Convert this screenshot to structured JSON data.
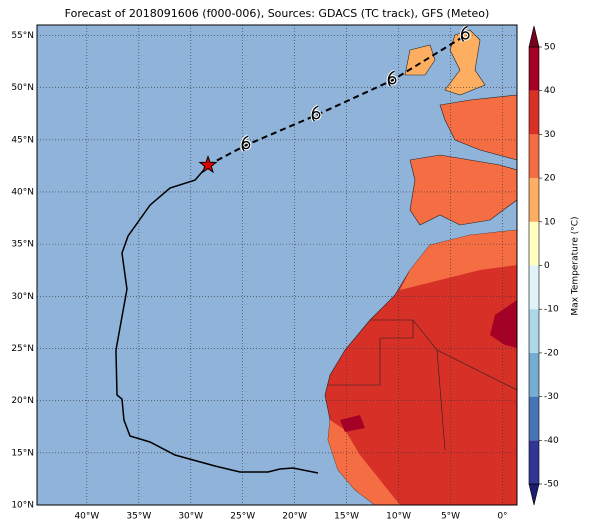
{
  "chart_data": {
    "type": "map",
    "title": "Forecast of 2018091606 (f000-006), Sources: GDACS (TC track), GFS (Meteo)",
    "xlim": [
      -44.8,
      1.4
    ],
    "ylim": [
      10,
      56
    ],
    "xticks": [
      {
        "value": -40,
        "label": "40°W"
      },
      {
        "value": -35,
        "label": "35°W"
      },
      {
        "value": -30,
        "label": "30°W"
      },
      {
        "value": -25,
        "label": "25°W"
      },
      {
        "value": -20,
        "label": "20°W"
      },
      {
        "value": -15,
        "label": "15°W"
      },
      {
        "value": -10,
        "label": "10°W"
      },
      {
        "value": -5,
        "label": "5°W"
      },
      {
        "value": 0,
        "label": "0°"
      }
    ],
    "yticks": [
      {
        "value": 10,
        "label": "10°N"
      },
      {
        "value": 15,
        "label": "15°N"
      },
      {
        "value": 20,
        "label": "20°N"
      },
      {
        "value": 25,
        "label": "25°N"
      },
      {
        "value": 30,
        "label": "30°N"
      },
      {
        "value": 35,
        "label": "35°N"
      },
      {
        "value": 40,
        "label": "40°N"
      },
      {
        "value": 45,
        "label": "45°N"
      },
      {
        "value": 50,
        "label": "50°N"
      },
      {
        "value": 55,
        "label": "55°N"
      }
    ],
    "grid": true,
    "track_history": {
      "lon": [
        -17.75,
        -18.72,
        -20.16,
        -21.41,
        -22.57,
        -25.26,
        -27.67,
        -31.52,
        -33.92,
        -35.85,
        -36.43,
        -36.62,
        -37.1,
        -37.2,
        -36.14,
        -36.62,
        -36.04,
        -33.92,
        -32.0,
        -29.59,
        -28.34
      ],
      "lat": [
        13.07,
        13.26,
        13.54,
        13.45,
        13.16,
        13.16,
        13.74,
        14.79,
        16.04,
        16.61,
        18.14,
        20.15,
        20.54,
        24.85,
        30.69,
        34.14,
        35.77,
        38.74,
        40.37,
        41.14,
        42.57
      ]
    },
    "forecast_track": {
      "lon": [
        -28.34,
        -24.67,
        -17.92,
        -10.6,
        -3.56
      ],
      "lat": [
        42.57,
        44.49,
        47.36,
        50.7,
        55.0
      ]
    },
    "colorbar": {
      "label": "Max Temperature (°C)",
      "ylim": [
        -50,
        50
      ],
      "levels": [
        -50,
        -40,
        -30,
        -20,
        -10,
        0,
        10,
        20,
        30,
        40,
        50
      ],
      "colors": [
        "#313695",
        "#4575b4",
        "#74add1",
        "#abd9e9",
        "#e0f3f8",
        "#ffffbf",
        "#fdae61",
        "#f46d43",
        "#d73027",
        "#a50026"
      ],
      "extend_colors": [
        "#1c1c70",
        "#7a0020"
      ],
      "ticks": [
        50,
        40,
        30,
        20,
        10,
        0,
        -10,
        -20,
        -30,
        -40,
        -50
      ]
    }
  }
}
